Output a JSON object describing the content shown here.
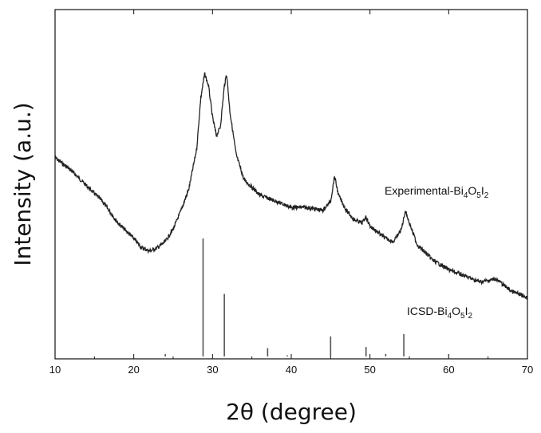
{
  "chart_data": {
    "type": "line",
    "title": "",
    "xlabel": "2θ  (degree)",
    "ylabel": "Intensity (a.u.)",
    "xlim": [
      10,
      70
    ],
    "x_ticks": [
      "10",
      "20",
      "30",
      "40",
      "50",
      "60",
      "70"
    ],
    "y_ticks_labeled": false,
    "grid": false,
    "legend": "none",
    "series": [
      {
        "name": "Experimental-Bi4O5I2",
        "label_parts": {
          "base": "Experimental-Bi",
          "s1": "4",
          "m1": "O",
          "s2": "5",
          "m2": "I",
          "s3": "2"
        },
        "color": "#222222",
        "relative_intensity": {
          "x": [
            10,
            12,
            14,
            16,
            18,
            20,
            21,
            22,
            23,
            24,
            25,
            26,
            27,
            28,
            28.5,
            29,
            29.5,
            30,
            30.5,
            31,
            31.5,
            31.8,
            32.2,
            33,
            34,
            36,
            38,
            40,
            42,
            44,
            45,
            45.5,
            46,
            47,
            48,
            49,
            49.5,
            50,
            51,
            52,
            53,
            54,
            54.5,
            55,
            56,
            58,
            60,
            62,
            64,
            66,
            68,
            70
          ],
          "y": [
            0.57,
            0.53,
            0.48,
            0.43,
            0.36,
            0.31,
            0.28,
            0.27,
            0.28,
            0.3,
            0.34,
            0.4,
            0.47,
            0.6,
            0.76,
            0.84,
            0.8,
            0.7,
            0.64,
            0.67,
            0.8,
            0.84,
            0.72,
            0.58,
            0.5,
            0.45,
            0.43,
            0.41,
            0.41,
            0.4,
            0.43,
            0.51,
            0.45,
            0.4,
            0.37,
            0.36,
            0.38,
            0.35,
            0.33,
            0.31,
            0.3,
            0.34,
            0.4,
            0.36,
            0.29,
            0.24,
            0.21,
            0.19,
            0.17,
            0.18,
            0.14,
            0.12
          ]
        }
      },
      {
        "name": "ICSD-Bi4O5I2",
        "label_parts": {
          "base": "ICSD-Bi",
          "s1": "4",
          "m1": "O",
          "s2": "5",
          "m2": "I",
          "s3": "2"
        },
        "color": "#555555",
        "type": "stick",
        "peaks": [
          {
            "x": 24.0,
            "h": 0.02
          },
          {
            "x": 28.8,
            "h": 1.0
          },
          {
            "x": 31.5,
            "h": 0.53
          },
          {
            "x": 37.0,
            "h": 0.07
          },
          {
            "x": 39.5,
            "h": 0.01
          },
          {
            "x": 45.0,
            "h": 0.17
          },
          {
            "x": 49.5,
            "h": 0.08
          },
          {
            "x": 52.0,
            "h": 0.02
          },
          {
            "x": 54.3,
            "h": 0.19
          },
          {
            "x": 60.0,
            "h": 0.02
          }
        ]
      }
    ]
  }
}
